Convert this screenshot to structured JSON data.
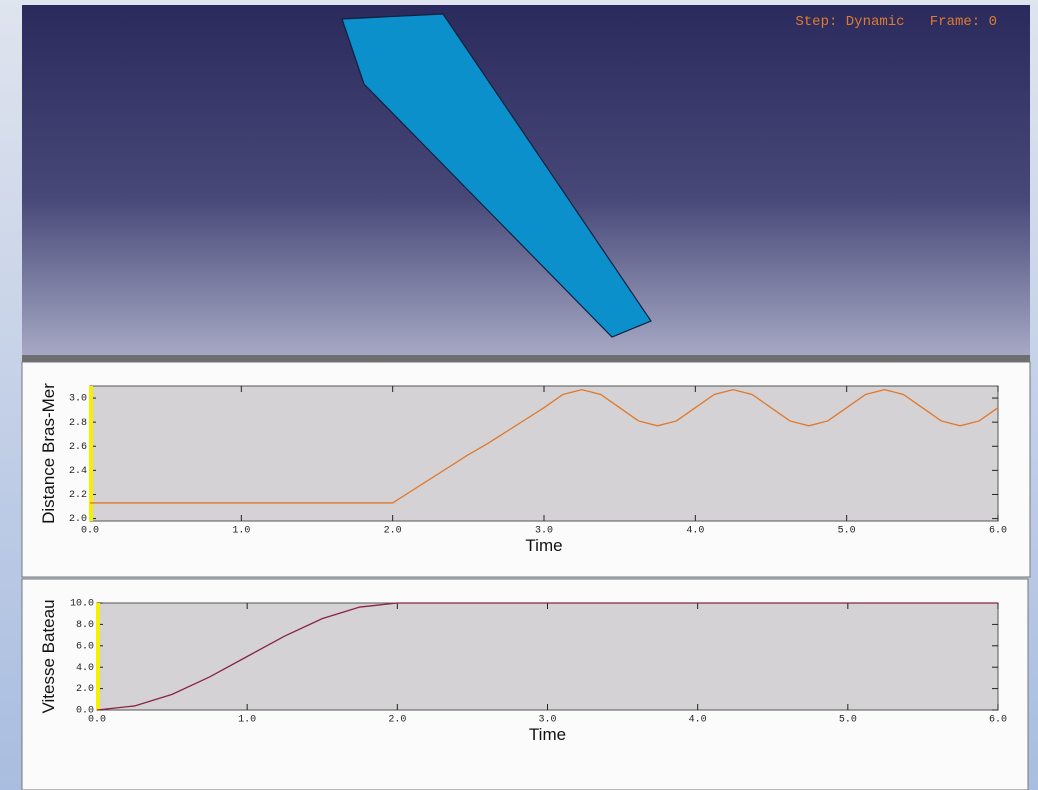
{
  "viewport": {
    "status": "Step: Dynamic   Frame: 0"
  },
  "chart_data": [
    {
      "type": "line",
      "x_label": "Time",
      "y_label": "Distance Bras-Mer",
      "x": [
        0,
        2,
        2.125,
        2.25,
        2.375,
        2.5,
        2.625,
        2.75,
        2.875,
        3,
        3.125,
        3.25,
        3.375,
        3.5,
        3.625,
        3.75,
        3.875,
        4,
        4.125,
        4.25,
        4.375,
        4.5,
        4.625,
        4.75,
        4.875,
        5,
        5.125,
        5.25,
        5.375,
        5.5,
        5.625,
        5.75,
        5.875,
        6
      ],
      "values": [
        2.13,
        2.13,
        2.23,
        2.33,
        2.43,
        2.53,
        2.62,
        2.72,
        2.82,
        2.92,
        3.03,
        3.07,
        3.03,
        2.92,
        2.81,
        2.77,
        2.81,
        2.92,
        3.03,
        3.07,
        3.03,
        2.92,
        2.81,
        2.77,
        2.81,
        2.92,
        3.03,
        3.07,
        3.03,
        2.92,
        2.81,
        2.77,
        2.81,
        2.92
      ],
      "color": "#e0782a",
      "xlim": [
        0,
        6
      ],
      "ylim": [
        1.98,
        3.1
      ],
      "xticks": [
        {
          "value": 0,
          "label": "0.0"
        },
        {
          "value": 1,
          "label": "1.0"
        },
        {
          "value": 2,
          "label": "2.0"
        },
        {
          "value": 3,
          "label": "3.0"
        },
        {
          "value": 4,
          "label": "4.0"
        },
        {
          "value": 5,
          "label": "5.0"
        },
        {
          "value": 6,
          "label": "6.0"
        }
      ],
      "yticks": [
        {
          "value": 2,
          "label": "2.0"
        },
        {
          "value": 2.2,
          "label": "2.2"
        },
        {
          "value": 2.4,
          "label": "2.4"
        },
        {
          "value": 2.6,
          "label": "2.6"
        },
        {
          "value": 2.8,
          "label": "2.8"
        },
        {
          "value": 3,
          "label": "3.0"
        }
      ]
    },
    {
      "type": "line",
      "x_label": "Time",
      "y_label": "Vitesse Bateau",
      "x": [
        0,
        0.25,
        0.5,
        0.75,
        1,
        1.25,
        1.5,
        1.75,
        2,
        6
      ],
      "values": [
        0,
        0.38,
        1.46,
        3.09,
        5,
        6.91,
        8.54,
        9.62,
        10,
        10
      ],
      "color": "#8b2346",
      "xlim": [
        0,
        6
      ],
      "ylim": [
        0,
        10
      ],
      "xticks": [
        {
          "value": 0,
          "label": "0.0"
        },
        {
          "value": 1,
          "label": "1.0"
        },
        {
          "value": 2,
          "label": "2.0"
        },
        {
          "value": 3,
          "label": "3.0"
        },
        {
          "value": 4,
          "label": "4.0"
        },
        {
          "value": 5,
          "label": "5.0"
        },
        {
          "value": 6,
          "label": "6.0"
        }
      ],
      "yticks": [
        {
          "value": 0,
          "label": "0.0"
        },
        {
          "value": 2,
          "label": "2.0"
        },
        {
          "value": 4,
          "label": "4.0"
        },
        {
          "value": 6,
          "label": "6.0"
        },
        {
          "value": 8,
          "label": "8.0"
        },
        {
          "value": 10,
          "label": "10.0"
        }
      ]
    }
  ]
}
